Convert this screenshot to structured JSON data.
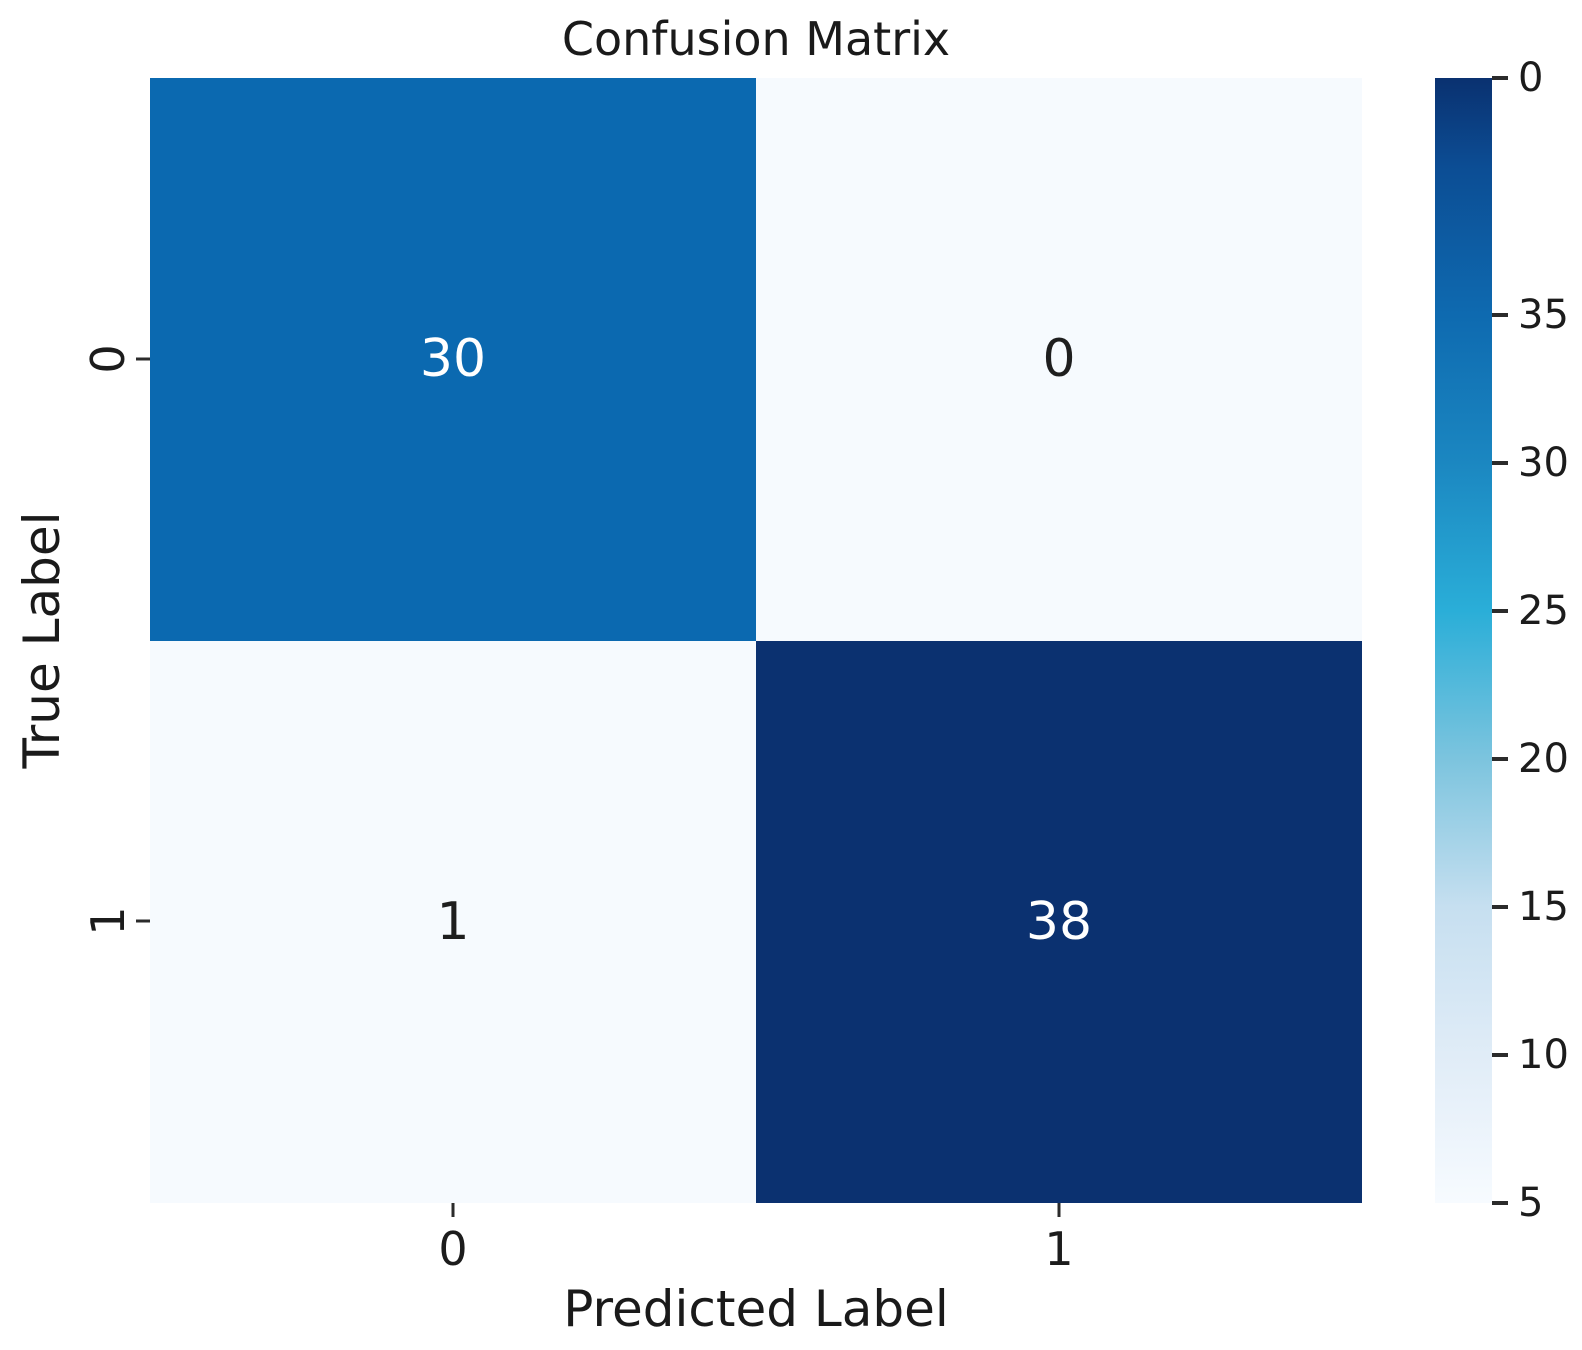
{
  "chart_data": {
    "type": "heatmap",
    "title": "Confusion Matrix",
    "xlabel": "Predicted Label",
    "ylabel": "True Label",
    "x_tick_labels": [
      "0",
      "1"
    ],
    "y_tick_labels": [
      "0",
      "1"
    ],
    "matrix": [
      [
        30,
        0
      ],
      [
        1,
        38
      ]
    ],
    "cells": [
      {
        "true_label": "0",
        "predicted_label": "0",
        "value": 30,
        "bg": "#0b69b0",
        "fg": "#ffffff"
      },
      {
        "true_label": "0",
        "predicted_label": "1",
        "value": 0,
        "bg": "#f6fafe",
        "fg": "#1e1e1e"
      },
      {
        "true_label": "1",
        "predicted_label": "0",
        "value": 1,
        "bg": "#f6fafe",
        "fg": "#1e1e1e"
      },
      {
        "true_label": "1",
        "predicted_label": "1",
        "value": 38,
        "bg": "#0b3170",
        "fg": "#ffffff"
      }
    ],
    "colormap": "Blues",
    "colorbar": {
      "vmin": 0,
      "vmax": 38,
      "ticks": [
        "35",
        "30",
        "25",
        "20",
        "15",
        "10",
        "5",
        "0"
      ],
      "gradient": [
        {
          "value": 0,
          "color": "#f7fbff"
        },
        {
          "value": 5,
          "color": "#e0ecf7"
        },
        {
          "value": 10,
          "color": "#c6dff0"
        },
        {
          "value": 15,
          "color": "#7cc4de"
        },
        {
          "value": 20,
          "color": "#2aaed8"
        },
        {
          "value": 25,
          "color": "#1b87c1"
        },
        {
          "value": 30,
          "color": "#0e6ab0"
        },
        {
          "value": 35,
          "color": "#0c4d94"
        },
        {
          "value": 38,
          "color": "#0a3170"
        }
      ]
    },
    "legend_position": "right",
    "grid": false
  }
}
